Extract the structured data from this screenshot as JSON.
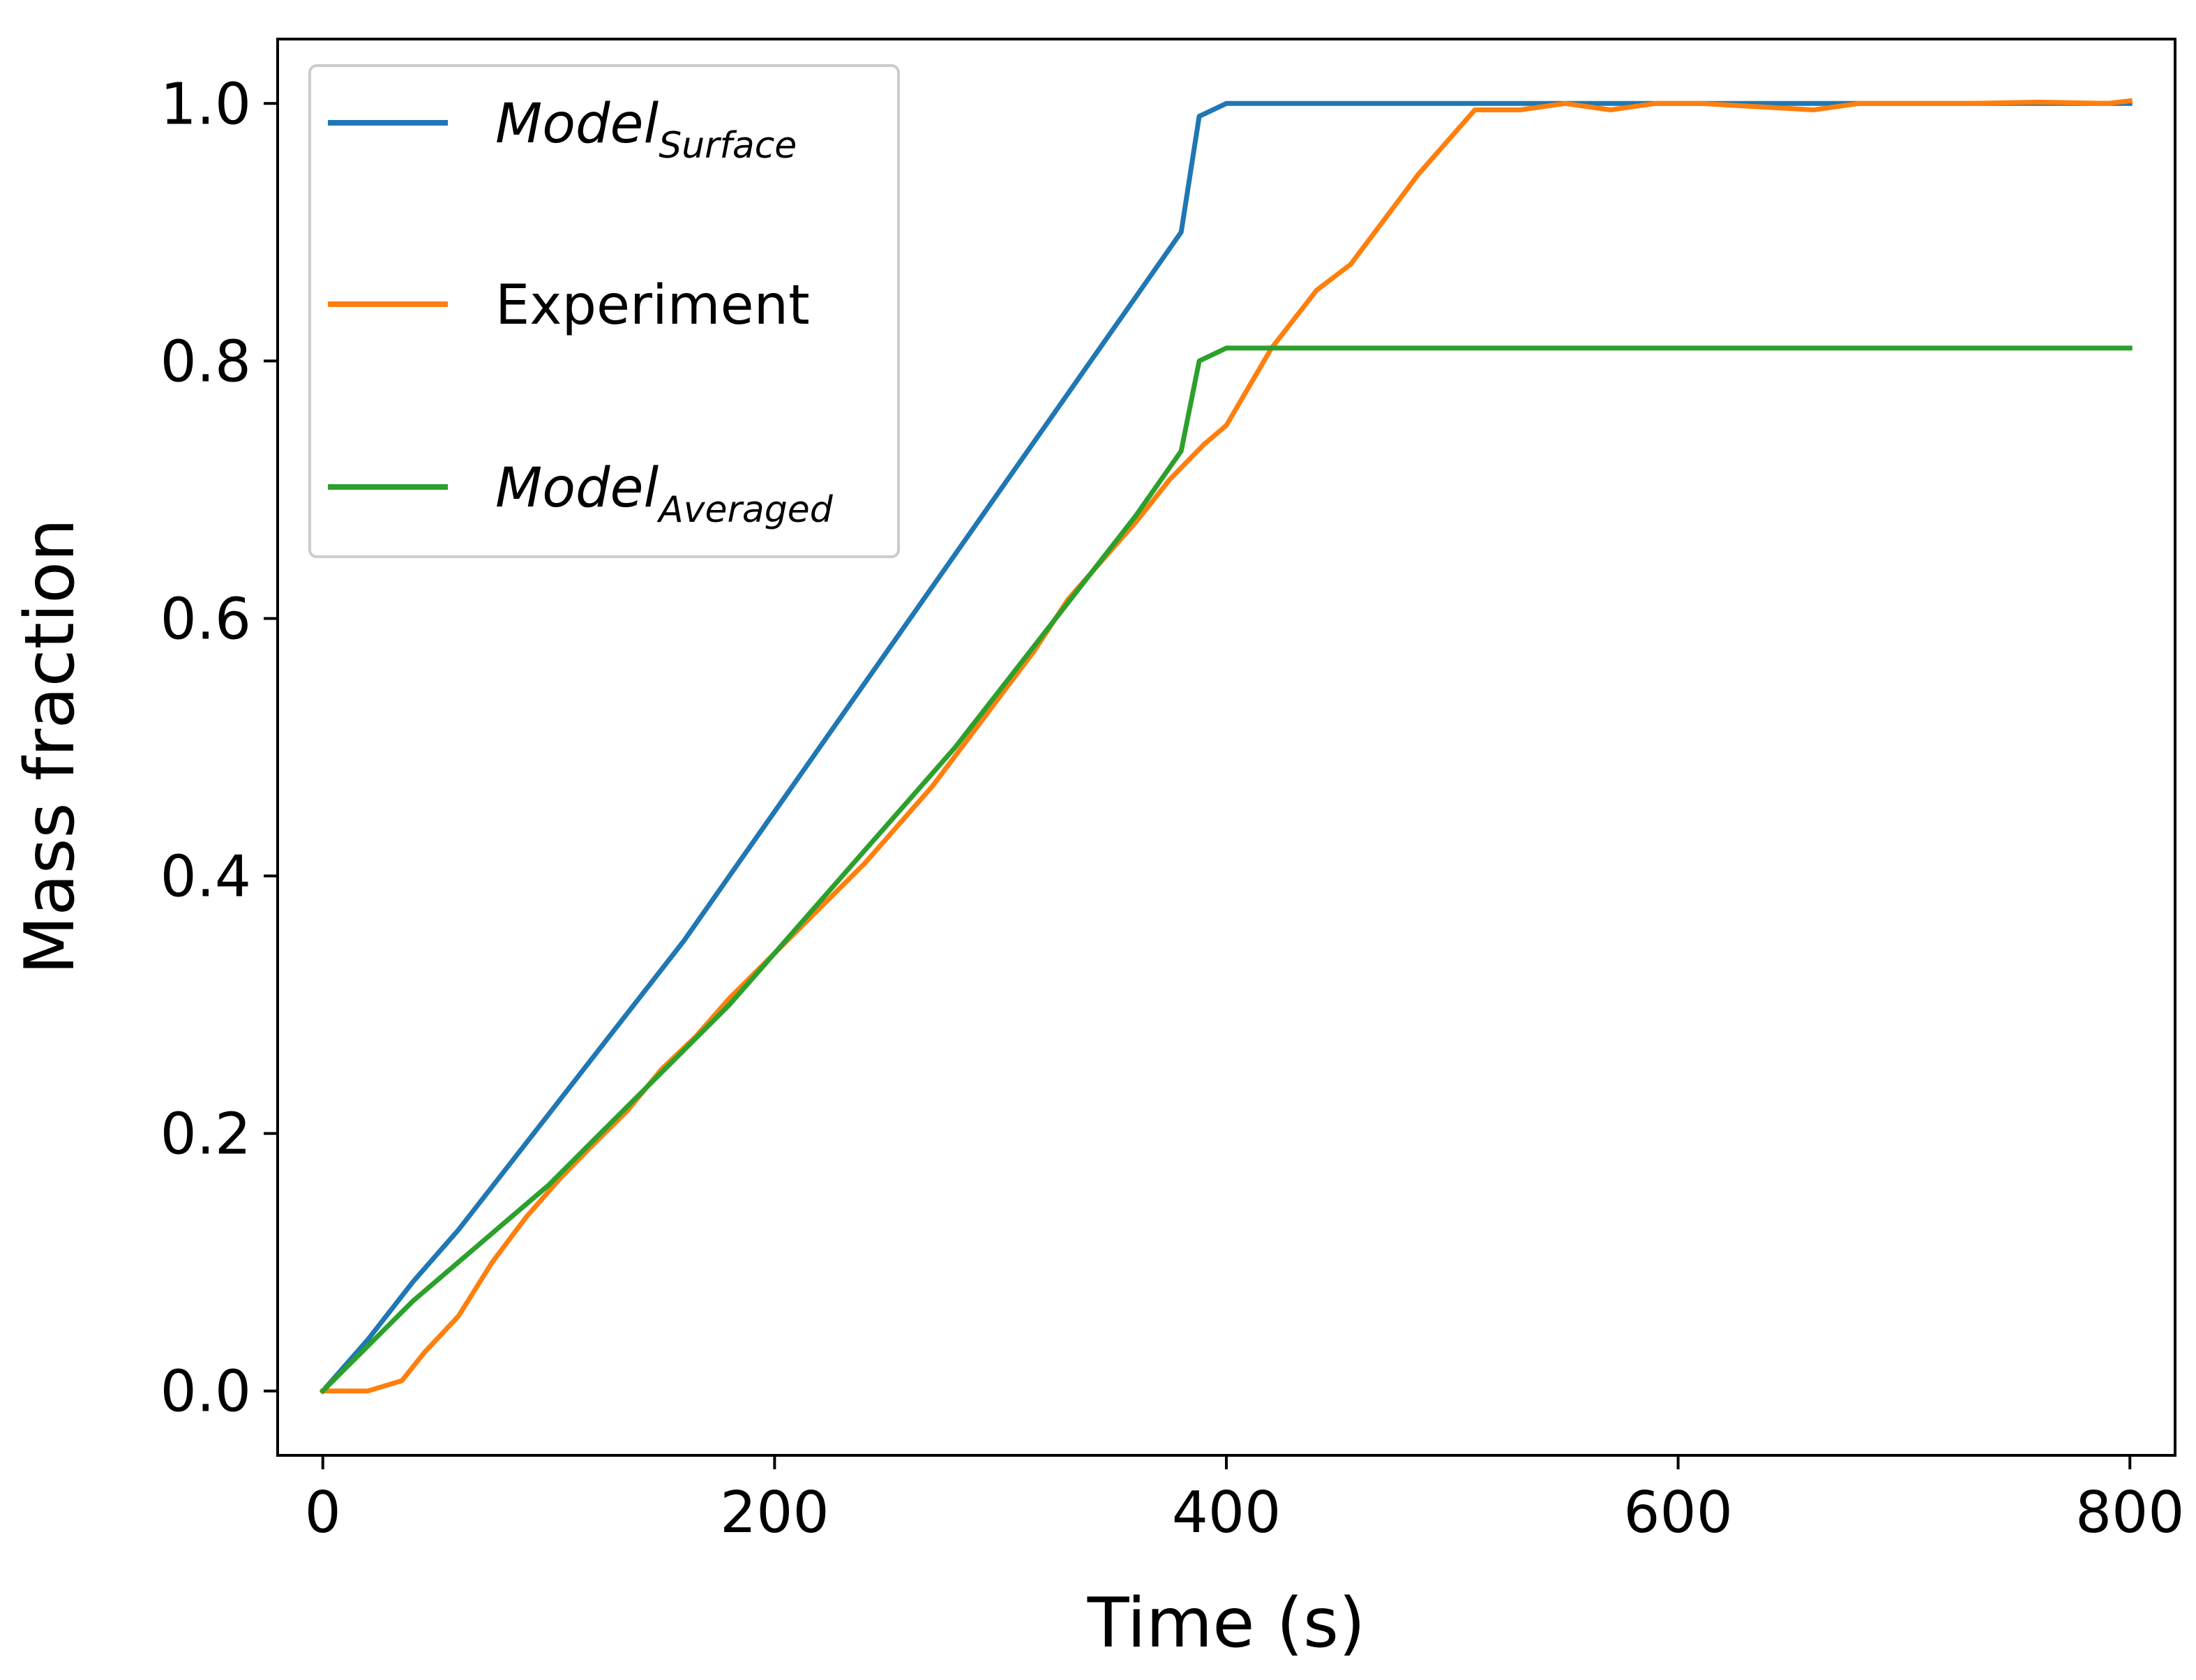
{
  "chart_data": {
    "type": "line",
    "title": "",
    "xlabel": "Time (s)",
    "ylabel": "Mass fraction",
    "xlim": [
      -20,
      820
    ],
    "ylim": [
      -0.05,
      1.05
    ],
    "xticks": [
      0,
      200,
      400,
      600,
      800
    ],
    "xtick_labels": [
      "0",
      "200",
      "400",
      "600",
      "800"
    ],
    "yticks": [
      0.0,
      0.2,
      0.4,
      0.6,
      0.8,
      1.0
    ],
    "ytick_labels": [
      "0.0",
      "0.2",
      "0.4",
      "0.6",
      "0.8",
      "1.0"
    ],
    "grid": false,
    "legend_position": "top-left",
    "series": [
      {
        "key": "model-surface",
        "name": "Model",
        "name_sub": "Surface",
        "italic": true,
        "color": "#1f77b4",
        "x": [
          0,
          20,
          40,
          60,
          80,
          100,
          120,
          140,
          160,
          180,
          200,
          220,
          240,
          260,
          280,
          300,
          320,
          340,
          360,
          380,
          388,
          400,
          500,
          600,
          700,
          800
        ],
        "y": [
          0,
          0.04,
          0.085,
          0.125,
          0.17,
          0.215,
          0.26,
          0.305,
          0.35,
          0.4,
          0.45,
          0.5,
          0.55,
          0.6,
          0.65,
          0.7,
          0.75,
          0.8,
          0.85,
          0.9,
          0.99,
          1.0,
          1.0,
          1.0,
          1.0,
          1.0
        ]
      },
      {
        "key": "experiment",
        "name": "Experiment",
        "name_sub": "",
        "italic": false,
        "color": "#ff7f0e",
        "x": [
          0,
          10,
          20,
          35,
          45,
          60,
          75,
          90,
          105,
          120,
          135,
          150,
          165,
          180,
          200,
          220,
          240,
          255,
          270,
          285,
          300,
          315,
          330,
          345,
          360,
          375,
          390,
          400,
          410,
          420,
          440,
          455,
          470,
          485,
          500,
          510,
          530,
          550,
          570,
          590,
          610,
          630,
          660,
          680,
          700,
          730,
          760,
          790,
          800
        ],
        "y": [
          0,
          0,
          0,
          0.008,
          0.03,
          0.058,
          0.1,
          0.135,
          0.165,
          0.192,
          0.218,
          0.25,
          0.275,
          0.305,
          0.34,
          0.375,
          0.41,
          0.44,
          0.47,
          0.505,
          0.54,
          0.575,
          0.615,
          0.645,
          0.675,
          0.708,
          0.735,
          0.75,
          0.78,
          0.81,
          0.855,
          0.875,
          0.91,
          0.945,
          0.975,
          0.995,
          0.995,
          1.0,
          0.995,
          1.0,
          1.0,
          0.998,
          0.995,
          1.0,
          1.0,
          1.0,
          1.001,
          1.0,
          1.002
        ]
      },
      {
        "key": "model-averaged",
        "name": "Model",
        "name_sub": "Averaged",
        "italic": true,
        "color": "#2ca02c",
        "x": [
          0,
          20,
          40,
          60,
          80,
          100,
          120,
          140,
          160,
          180,
          200,
          220,
          240,
          260,
          280,
          300,
          320,
          340,
          360,
          380,
          388,
          400,
          500,
          600,
          700,
          800
        ],
        "y": [
          0,
          0.035,
          0.07,
          0.1,
          0.13,
          0.16,
          0.195,
          0.23,
          0.265,
          0.3,
          0.34,
          0.38,
          0.42,
          0.46,
          0.5,
          0.545,
          0.59,
          0.635,
          0.68,
          0.73,
          0.8,
          0.81,
          0.81,
          0.81,
          0.81,
          0.81
        ]
      }
    ]
  }
}
